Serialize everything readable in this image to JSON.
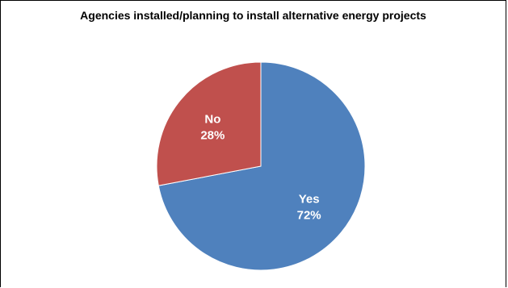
{
  "chart_data": {
    "type": "pie",
    "title": "Agencies installed/planning to install alternative energy projects",
    "slices": [
      {
        "label": "Yes",
        "value": 72,
        "display": "72%",
        "color": "#4F81BD"
      },
      {
        "label": "No",
        "value": 28,
        "display": "28%",
        "color": "#C0504D"
      }
    ],
    "legend": "none",
    "data_labels": "inside"
  }
}
